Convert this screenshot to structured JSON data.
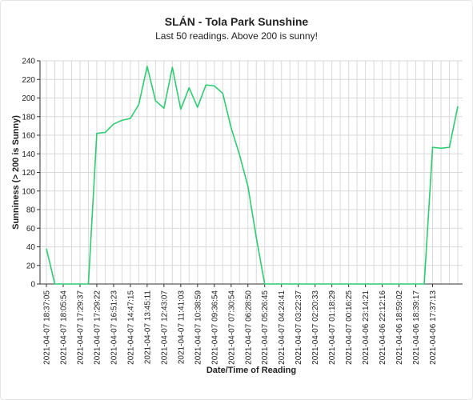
{
  "title": "SLÁN - Tola Park Sunshine",
  "subtitle": "Last 50 readings. Above 200 is sunny!",
  "colors": {
    "line": "#2ecc71",
    "grid": "#d9d9d9",
    "axis": "#333333"
  },
  "chart_data": {
    "type": "line",
    "title": "SLÁN - Tola Park Sunshine",
    "subtitle": "Last 50 readings. Above 200 is sunny!",
    "xlabel": "Date/Time of Reading",
    "ylabel": "Sunniness (> 200 is Sunny)",
    "ylim": [
      0,
      240
    ],
    "yticks": [
      0,
      20,
      40,
      60,
      80,
      100,
      120,
      140,
      160,
      180,
      200,
      220,
      240
    ],
    "grid": true,
    "xtick_labels": [
      "2021-04-07 18:37:05",
      "2021-04-07 18:05:54",
      "2021-04-07 17:29:37",
      "2021-04-07 17:29:22",
      "2021-04-07 16:51:23",
      "2021-04-07 14:47:15",
      "2021-04-07 13:45:11",
      "2021-04-07 12:43:07",
      "2021-04-07 11:41:03",
      "2021-04-07 10:38:59",
      "2021-04-07 09:36:54",
      "2021-04-07 07:30:54",
      "2021-04-07 06:28:50",
      "2021-04-07 05:26:45",
      "2021-04-07 04:24:41",
      "2021-04-07 03:22:37",
      "2021-04-07 02:20:33",
      "2021-04-07 01:18:29",
      "2021-04-07 00:16:25",
      "2021-04-06 23:14:21",
      "2021-04-06 22:12:16",
      "2021-04-06 18:59:02",
      "2021-04-06 18:39:17",
      "2021-04-06 17:37:13"
    ],
    "series": [
      {
        "values": [
          38,
          0,
          0,
          0,
          0,
          0,
          162,
          163,
          172,
          176,
          178,
          193,
          234,
          197,
          189,
          233,
          188,
          211,
          190,
          214,
          213,
          205,
          168,
          139,
          105,
          50,
          0,
          0,
          0,
          0,
          0,
          0,
          0,
          0,
          0,
          0,
          0,
          0,
          0,
          0,
          0,
          0,
          0,
          0,
          0,
          0,
          147,
          146,
          147,
          191
        ]
      }
    ]
  }
}
